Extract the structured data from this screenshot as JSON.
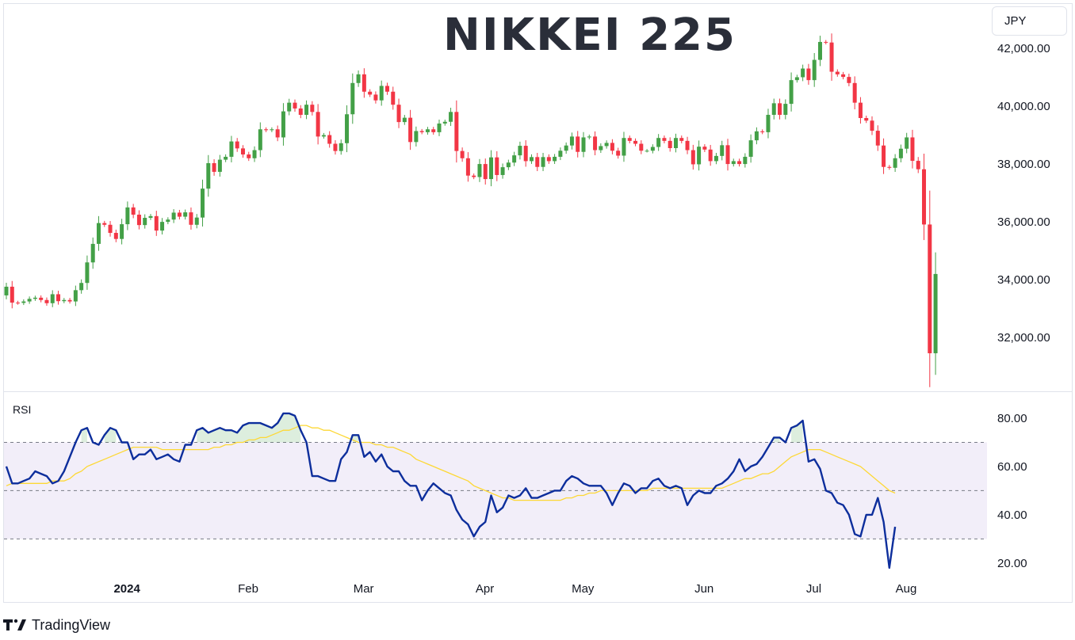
{
  "chart_data": {
    "type": "candlestick",
    "title": "NIKKEI 225",
    "currency": "JPY",
    "price_axis": {
      "ticks": [
        "42,000.00",
        "40,000.00",
        "38,000.00",
        "36,000.00",
        "34,000.00",
        "32,000.00"
      ],
      "ylim": [
        30200,
        43450
      ]
    },
    "time_axis": {
      "ticks": [
        "2024",
        "Feb",
        "Mar",
        "Apr",
        "May",
        "Jun",
        "Jul",
        "Aug"
      ]
    },
    "candles_close": [
      33760,
      33210,
      33200,
      33250,
      33340,
      33380,
      33300,
      33190,
      33500,
      33260,
      33300,
      33250,
      33640,
      33890,
      34600,
      35240,
      35960,
      35900,
      35620,
      35410,
      35920,
      36500,
      36250,
      35890,
      36140,
      36200,
      35700,
      36000,
      36080,
      36320,
      36180,
      36330,
      35900,
      36150,
      37150,
      38030,
      37730,
      38150,
      38250,
      38780,
      38540,
      38330,
      38200,
      38480,
      39200,
      39170,
      39200,
      38920,
      39820,
      40120,
      39920,
      39700,
      40050,
      39800,
      38950,
      39000,
      38700,
      38450,
      38720,
      39720,
      40800,
      41100,
      40500,
      40400,
      40200,
      40700,
      40500,
      40050,
      39450,
      39600,
      38760,
      39140,
      39100,
      39200,
      39100,
      39400,
      39460,
      39800,
      38450,
      38200,
      37600,
      37550,
      38000,
      37480,
      38230,
      37620,
      37890,
      38050,
      38300,
      38630,
      38100,
      38240,
      37900,
      38240,
      38100,
      38250,
      38460,
      38640,
      38950,
      38420,
      38920,
      38950,
      38480,
      38620,
      38730,
      38460,
      38290,
      38900,
      38800,
      38700,
      38460,
      38460,
      38590,
      38900,
      38800,
      38550,
      38900,
      38800,
      38480,
      37990,
      38600,
      38500,
      38100,
      38280,
      38650,
      38000,
      38100,
      38000,
      38250,
      38820,
      39130,
      39100,
      39700,
      40100,
      39700,
      40080,
      40900,
      41000,
      41300,
      40900,
      41600,
      42220,
      42200,
      41190,
      41100,
      41010,
      40800,
      40120,
      39590,
      39500,
      39150,
      38640,
      37900,
      37870,
      38200,
      38530,
      38920,
      38110,
      37820,
      35910,
      31460,
      34200
    ],
    "rsi": {
      "label": "RSI",
      "ticks": [
        "80.00",
        "60.00",
        "40.00",
        "20.00"
      ],
      "ylim": [
        14.7,
        88.2
      ],
      "bands": [
        70,
        50,
        30
      ],
      "values": [
        60,
        53,
        53,
        54,
        55,
        58,
        57,
        56,
        53,
        54,
        58,
        64,
        70,
        75,
        76,
        70,
        69,
        73,
        76,
        75,
        70,
        70,
        63,
        65,
        65,
        67,
        63,
        64,
        65,
        63,
        62,
        69,
        69,
        75,
        76,
        74,
        75,
        76,
        75,
        75,
        74,
        77,
        78,
        78,
        78,
        77,
        76,
        78,
        82,
        82,
        81,
        75,
        70,
        56,
        56,
        55,
        54,
        54,
        63,
        66,
        73,
        73,
        64,
        66,
        62,
        65,
        60,
        58,
        58,
        54,
        52,
        52,
        46,
        50,
        53,
        51,
        49,
        48,
        42,
        38,
        36,
        31,
        35,
        37,
        48,
        41,
        43,
        48,
        47,
        48,
        51,
        47,
        47,
        48,
        49,
        50,
        50,
        54,
        56,
        55,
        53,
        52,
        52,
        52,
        49,
        44,
        49,
        53,
        52,
        49,
        51,
        51,
        54,
        55,
        52,
        51,
        52,
        51,
        44,
        48,
        50,
        49,
        49,
        52,
        53,
        55,
        58,
        63,
        58,
        60,
        61,
        64,
        68,
        72,
        72,
        70,
        76,
        77,
        79,
        62,
        63,
        59,
        50,
        49,
        45,
        44,
        40,
        32,
        31,
        40,
        40,
        47,
        37,
        18,
        35
      ],
      "ma": [
        52,
        53,
        53,
        53,
        53,
        53,
        53,
        53,
        54,
        54,
        54,
        55,
        57,
        58,
        60,
        61,
        62,
        63,
        64,
        65,
        66,
        67,
        68,
        68,
        68,
        68,
        68,
        67,
        67,
        67,
        67,
        67,
        67,
        67,
        67,
        67,
        68,
        68,
        69,
        69,
        70,
        70,
        71,
        71,
        72,
        72,
        73,
        74,
        75,
        75,
        76,
        77,
        77,
        76,
        76,
        75,
        75,
        74,
        73,
        72,
        71,
        70,
        70,
        70,
        69,
        69,
        68,
        68,
        67,
        66,
        65,
        63,
        62,
        61,
        60,
        59,
        58,
        57,
        56,
        55,
        54,
        52,
        51,
        50,
        49,
        48,
        47,
        47,
        46,
        46,
        46,
        46,
        46,
        46,
        46,
        46,
        46,
        47,
        47,
        48,
        48,
        49,
        49,
        50,
        50,
        50,
        50,
        50,
        50,
        50,
        50,
        50,
        51,
        51,
        51,
        51,
        51,
        51,
        51,
        51,
        51,
        51,
        51,
        51,
        51,
        52,
        53,
        54,
        55,
        55,
        56,
        57,
        57,
        58,
        60,
        62,
        64,
        65,
        66,
        67,
        67,
        67,
        66,
        65,
        64,
        63,
        62,
        61,
        60,
        58,
        56,
        54,
        52,
        50,
        49
      ]
    }
  },
  "footer": {
    "brand": "TradingView"
  }
}
